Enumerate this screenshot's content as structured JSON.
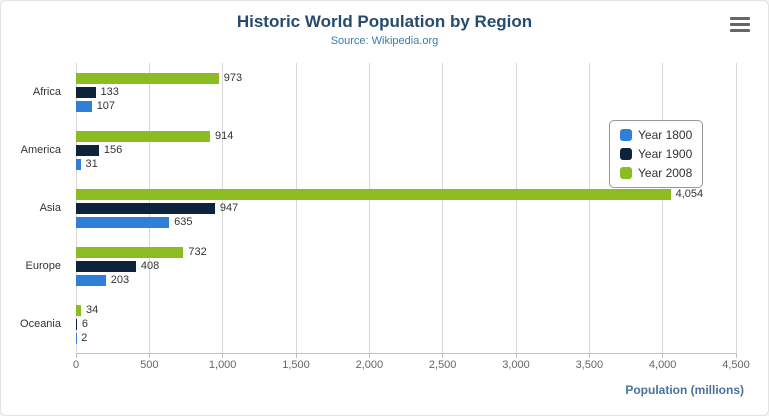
{
  "chart_data": {
    "type": "bar",
    "title": "Historic World Population by Region",
    "subtitle": "Source: Wikipedia.org",
    "categories": [
      "Africa",
      "America",
      "Asia",
      "Europe",
      "Oceania"
    ],
    "series": [
      {
        "name": "Year 1800",
        "color": "#2f7ed8",
        "values": [
          107,
          31,
          635,
          203,
          2
        ]
      },
      {
        "name": "Year 1900",
        "color": "#0d233a",
        "values": [
          133,
          156,
          947,
          408,
          6
        ]
      },
      {
        "name": "Year 2008",
        "color": "#8bbc21",
        "values": [
          973,
          914,
          4054,
          732,
          34
        ]
      }
    ],
    "xlabel": "Population (millions)",
    "ylabel": "",
    "xlim": [
      0,
      4500
    ],
    "tick_step": 500,
    "tick_labels": [
      "0",
      "500",
      "1,000",
      "1,500",
      "2,000",
      "2,500",
      "3,000",
      "3,500",
      "4,000",
      "4,500"
    ],
    "grid": true,
    "legend_position": "right-float",
    "bar_display_order_top_to_bottom": [
      "Year 2008",
      "Year 1900",
      "Year 1800"
    ]
  },
  "export_menu": {
    "icon": "hamburger-menu-icon"
  }
}
